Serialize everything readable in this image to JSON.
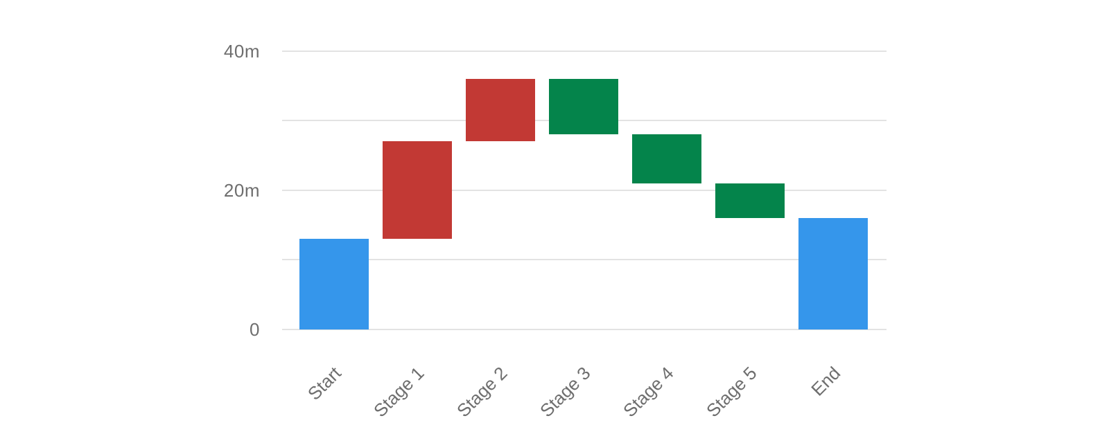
{
  "chart_data": {
    "type": "bar",
    "subtype": "waterfall",
    "title": "",
    "xlabel": "",
    "ylabel": "",
    "categories": [
      "Start",
      "Stage 1",
      "Stage 2",
      "Stage 3",
      "Stage 4",
      "Stage 5",
      "End"
    ],
    "steps": [
      {
        "label": "Start",
        "role": "total",
        "value": 13,
        "cumulative": 13
      },
      {
        "label": "Stage 1",
        "role": "increase",
        "value": 14,
        "cumulative": 27
      },
      {
        "label": "Stage 2",
        "role": "increase",
        "value": 9,
        "cumulative": 36
      },
      {
        "label": "Stage 3",
        "role": "decrease",
        "value": -8,
        "cumulative": 28
      },
      {
        "label": "Stage 4",
        "role": "decrease",
        "value": -7,
        "cumulative": 21
      },
      {
        "label": "Stage 5",
        "role": "decrease",
        "value": -5,
        "cumulative": 16
      },
      {
        "label": "End",
        "role": "total",
        "value": 16,
        "cumulative": 16
      }
    ],
    "y_axis": {
      "unit": "m",
      "min": 0,
      "max": 40,
      "grid": true,
      "ticks": [
        {
          "value": 0,
          "label": "0"
        },
        {
          "value": 10,
          "label": ""
        },
        {
          "value": 20,
          "label": "20m"
        },
        {
          "value": 30,
          "label": ""
        },
        {
          "value": 40,
          "label": "40m"
        }
      ]
    },
    "legend": "none",
    "colors": {
      "total": "#3596eb",
      "increase": "#c23934",
      "decrease": "#04844b",
      "gridline": "#e3e3e3",
      "axis_text": "#6e6e6e"
    }
  }
}
